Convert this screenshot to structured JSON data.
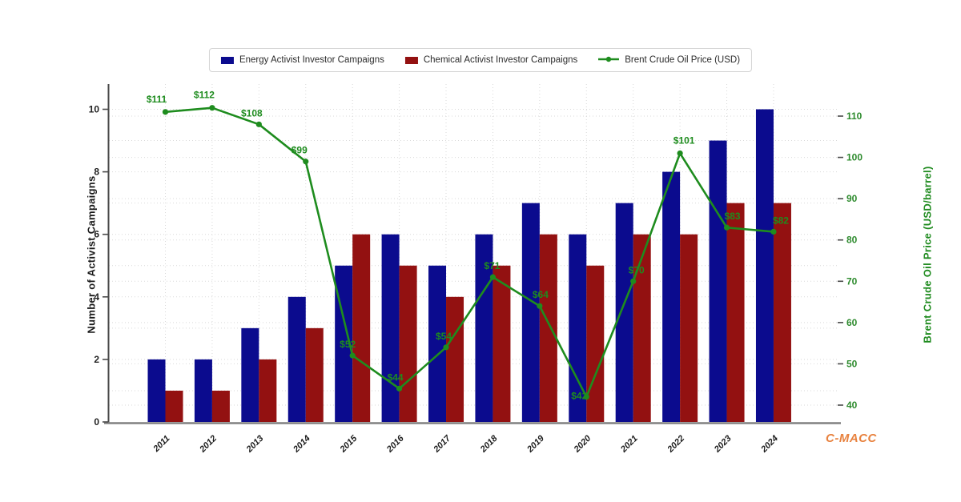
{
  "watermark": "C-MACC",
  "chart_data": {
    "type": "bar+line",
    "title": "",
    "categories": [
      "2011",
      "2012",
      "2013",
      "2014",
      "2015",
      "2016",
      "2017",
      "2018",
      "2019",
      "2020",
      "2021",
      "2022",
      "2023",
      "2024"
    ],
    "series": [
      {
        "name": "Energy Activist Investor Campaigns",
        "type": "bar",
        "axis": "left",
        "color": "#0b0b8e",
        "values": [
          2,
          2,
          3,
          4,
          5,
          6,
          5,
          6,
          7,
          6,
          7,
          8,
          9,
          10
        ]
      },
      {
        "name": "Chemical Activist Investor Campaigns",
        "type": "bar",
        "axis": "left",
        "color": "#931111",
        "values": [
          1,
          1,
          2,
          3,
          6,
          5,
          4,
          5,
          6,
          5,
          6,
          6,
          7,
          7
        ]
      },
      {
        "name": "Brent Crude Oil Price (USD)",
        "type": "line",
        "axis": "right",
        "color": "#1e8c1e",
        "values": [
          111,
          112,
          108,
          99,
          52,
          44,
          54,
          71,
          64,
          42,
          70,
          101,
          83,
          82
        ],
        "point_labels": [
          "$111",
          "$112",
          "$108",
          "$99",
          "$52",
          "$44",
          "$54",
          "$71",
          "$64",
          "$42",
          "$70",
          "$101",
          "$83",
          "$82"
        ]
      }
    ],
    "left_axis": {
      "label": "Number of Activist Campaigns",
      "ticks": [
        0,
        2,
        4,
        6,
        8,
        10
      ],
      "range": [
        0,
        10.7
      ],
      "color": "#222222"
    },
    "right_axis": {
      "label": "Brent Crude Oil Price (USD/barrel)",
      "ticks": [
        40,
        50,
        60,
        70,
        80,
        90,
        100,
        110
      ],
      "range": [
        36.5,
        113
      ],
      "color": "#2e8b2e"
    },
    "grid": true,
    "legend_position": "top-center"
  }
}
